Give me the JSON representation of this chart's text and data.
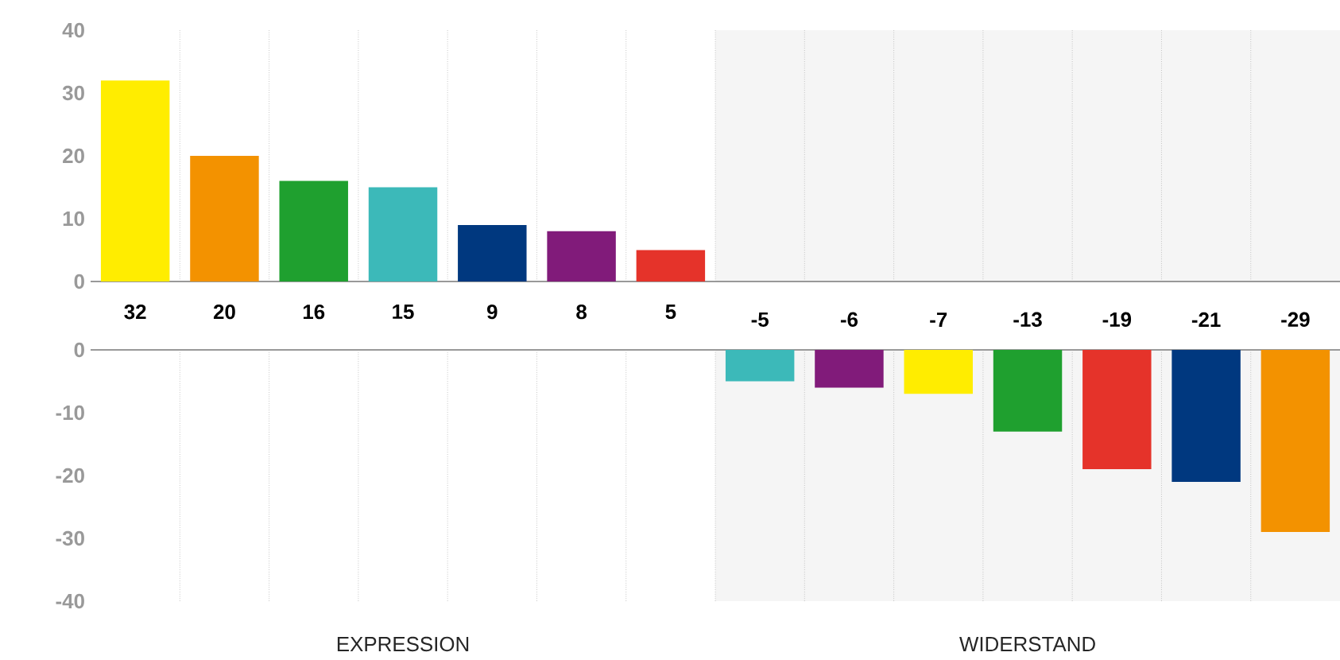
{
  "chart_data": [
    {
      "type": "bar",
      "categories": [
        null,
        null,
        null,
        null,
        null,
        null,
        null,
        null,
        null,
        null,
        null,
        null,
        null,
        null
      ],
      "values": [
        32,
        20,
        16,
        15,
        9,
        8,
        5,
        null,
        null,
        null,
        null,
        null,
        null,
        null
      ],
      "colors": [
        "#ffed00",
        "#f39200",
        "#1fa02f",
        "#3cb9b9",
        "#00387f",
        "#811b7a",
        "#e5332a",
        null,
        null,
        null,
        null,
        null,
        null,
        null
      ],
      "ylim": [
        0,
        40
      ],
      "yticks": [
        0,
        10,
        20,
        30,
        40
      ],
      "tick_labels": "y",
      "data_labels": true
    },
    {
      "type": "bar",
      "categories": [
        null,
        null,
        null,
        null,
        null,
        null,
        null,
        null,
        null,
        null,
        null,
        null,
        null,
        null
      ],
      "values": [
        null,
        null,
        null,
        null,
        null,
        null,
        null,
        -5,
        -6,
        -7,
        -13,
        -19,
        -21,
        -29
      ],
      "colors": [
        null,
        null,
        null,
        null,
        null,
        null,
        null,
        "#3cb9b9",
        "#811b7a",
        "#ffed00",
        "#1fa02f",
        "#e5332a",
        "#00387f",
        "#f39200"
      ],
      "ylim": [
        -40,
        0
      ],
      "yticks": [
        -40,
        -30,
        -20,
        -10,
        0
      ],
      "tick_labels": "y",
      "data_labels": true,
      "annotations": [
        "EXPRESSION",
        "WIDERSTAND"
      ]
    }
  ]
}
